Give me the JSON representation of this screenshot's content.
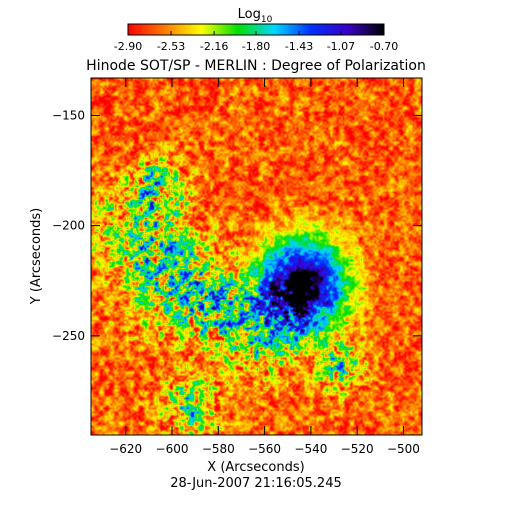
{
  "chart_data": {
    "type": "heatmap",
    "title": "Hinode SOT/SP - MERLIN : Degree of Polarization",
    "subtitle": "28-Jun-2007 21:16:05.245",
    "xlabel": "X (Arcseconds)",
    "ylabel": "Y (Arcseconds)",
    "xlim": [
      -635,
      -492
    ],
    "ylim": [
      -295,
      -133
    ],
    "x_ticks": [
      -620,
      -600,
      -580,
      -560,
      -540,
      -520,
      -500
    ],
    "y_ticks": [
      -150,
      -200,
      -250
    ],
    "colorbar": {
      "label": "Log",
      "label_subscript": "10",
      "ticks": [
        -2.9,
        -2.53,
        -2.16,
        -1.8,
        -1.43,
        -1.07,
        -0.7
      ],
      "tick_labels": [
        "-2.90",
        "-2.53",
        "-2.16",
        "-1.80",
        "-1.43",
        "-1.07",
        "-0.70"
      ],
      "colors": [
        "#ff0000",
        "#ff7a00",
        "#ffff00",
        "#00e000",
        "#00d8ff",
        "#0030ff",
        "#3a00c8",
        "#000000"
      ]
    },
    "features": {
      "background_level": -2.7,
      "sunspot_center": [
        -543,
        -225
      ],
      "sunspot_peak_level": -0.9
    }
  }
}
